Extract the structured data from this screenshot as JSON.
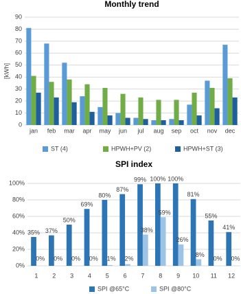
{
  "chart_data": [
    {
      "type": "bar",
      "title": "Monthly trend",
      "y_label": "[kWh]",
      "categories": [
        "jan",
        "feb",
        "mar",
        "apr",
        "may",
        "jun",
        "jul",
        "aug",
        "sep",
        "oct",
        "nov",
        "dec"
      ],
      "series": [
        {
          "name": "ST (4)",
          "color": "#5b9bd5",
          "values": [
            81,
            68,
            52,
            24,
            15,
            10,
            6,
            4,
            5,
            17,
            37,
            67
          ]
        },
        {
          "name": "HPWH+PV (2)",
          "color": "#70ad47",
          "values": [
            41,
            36,
            38,
            34,
            31,
            26,
            23,
            21,
            21,
            27,
            31,
            39
          ]
        },
        {
          "name": "HPWH+ST (3)",
          "color": "#1f5f9e",
          "values": [
            27,
            23,
            19,
            11,
            8,
            6,
            5,
            4,
            4,
            8,
            14,
            23
          ]
        }
      ],
      "ylim": [
        0,
        90
      ],
      "yticks": [
        0,
        10,
        20,
        30,
        40,
        50,
        60,
        70,
        80,
        90
      ],
      "grid": true
    },
    {
      "type": "bar",
      "title": "SPI index",
      "categories": [
        "1",
        "2",
        "3",
        "4",
        "5",
        "6",
        "7",
        "8",
        "9",
        "10",
        "11",
        "12"
      ],
      "series": [
        {
          "name": "SPI @65°C",
          "color": "#2e75b6",
          "values": [
            35,
            37,
            50,
            69,
            80,
            87,
            99,
            100,
            100,
            81,
            55,
            41
          ],
          "value_labels": [
            "35%",
            "37%",
            "50%",
            "69%",
            "80%",
            "87%",
            "99%",
            "100%",
            "100%",
            "81%",
            "55%",
            "41%"
          ]
        },
        {
          "name": "SPI @80°C",
          "color": "#9dc3e6",
          "values": [
            0,
            0,
            0,
            0,
            1,
            2,
            38,
            59,
            26,
            8,
            0,
            0
          ],
          "value_labels": [
            "0%",
            "0%",
            "0%",
            "0%",
            "1%",
            "2%",
            "38%",
            "59%",
            "26%",
            "8%",
            "0%",
            "0%"
          ]
        }
      ],
      "ylim": [
        0,
        100
      ],
      "yticks": [
        {
          "value": 0,
          "label": "0%"
        },
        {
          "value": 20,
          "label": "20%"
        },
        {
          "value": 40,
          "label": "40%"
        },
        {
          "value": 60,
          "label": "60%"
        },
        {
          "value": 80,
          "label": "80%"
        },
        {
          "value": 100,
          "label": "100%"
        }
      ],
      "grid": true
    }
  ]
}
